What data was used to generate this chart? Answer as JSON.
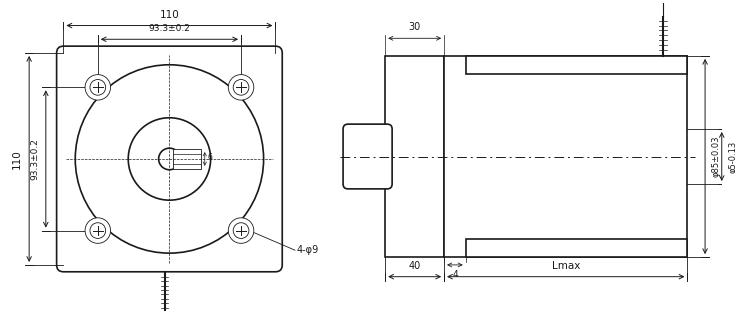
{
  "bg_color": "#ffffff",
  "line_color": "#1a1a1a",
  "fig_width": 7.35,
  "fig_height": 3.14,
  "annotations": {
    "top_dim_110": "110",
    "inner_dim_933": "93.3±0.2",
    "left_dim_110": "110",
    "left_dim_933": "93.3±0.2",
    "shaft_label": "6",
    "hole_label": "4-φ9",
    "right_dim_85": "φ85±0.03",
    "right_dim_5": "φ5-0.13",
    "top_dim_40": "40",
    "top_dim_lmax": "Lmax",
    "top_dim_4": "4",
    "bottom_dim_30": "30"
  }
}
